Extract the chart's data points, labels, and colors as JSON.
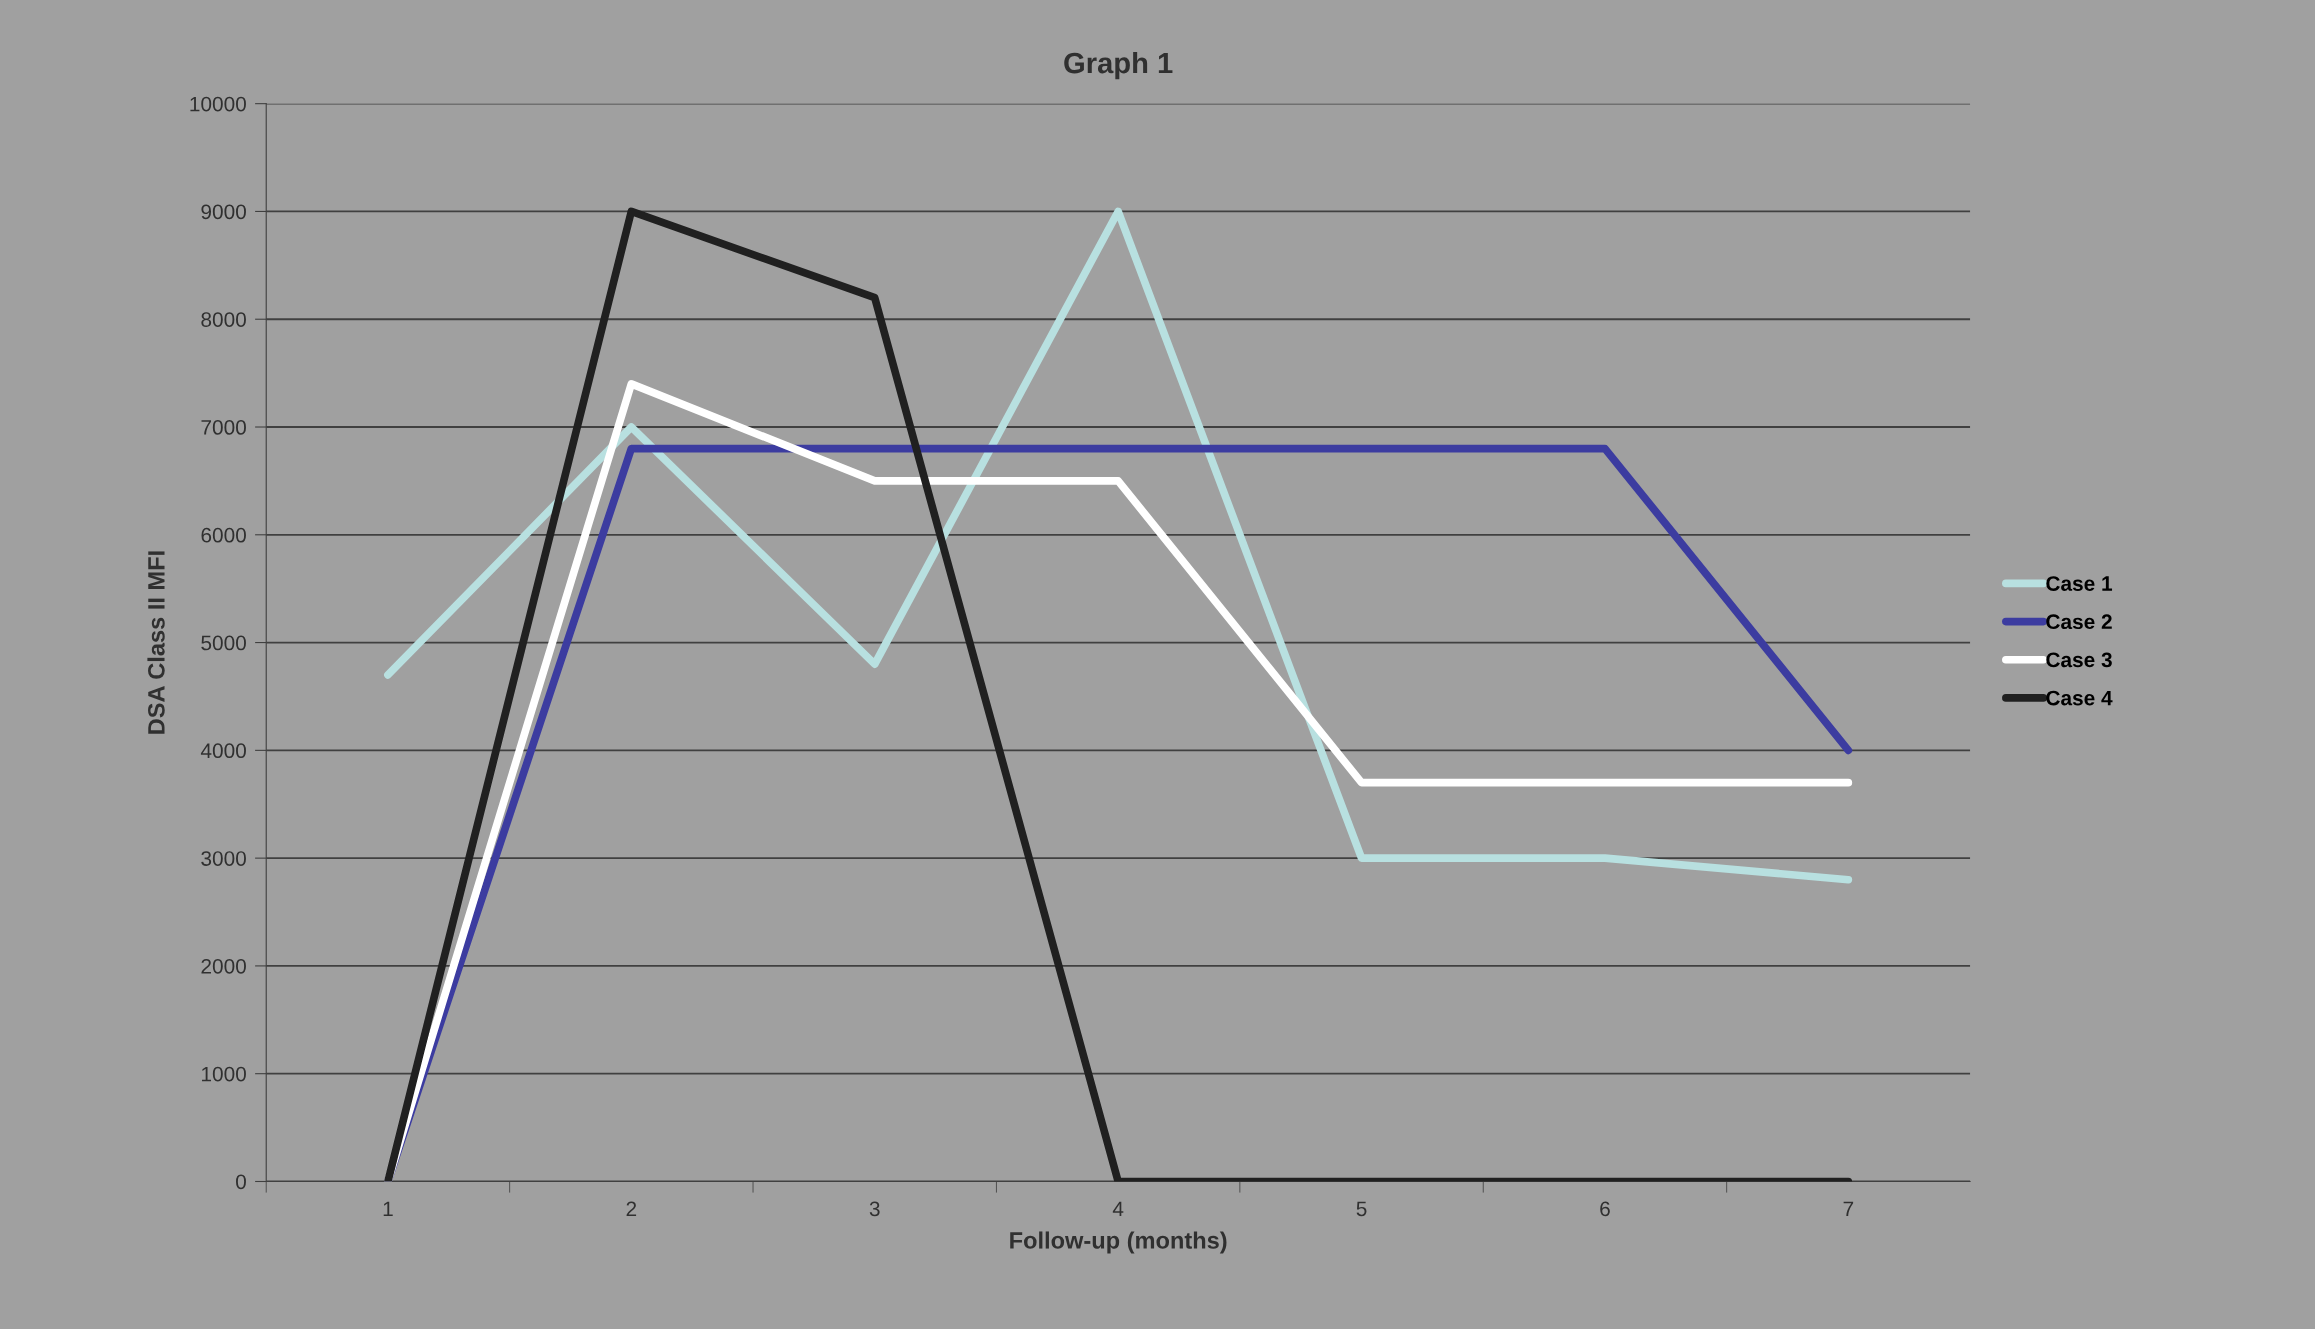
{
  "chart_data": {
    "type": "line",
    "title": "Graph 1",
    "xlabel": "Follow-up (months)",
    "ylabel": "DSA Class II MFI",
    "categories": [
      "1",
      "2",
      "3",
      "4",
      "5",
      "6",
      "7"
    ],
    "series": [
      {
        "name": "Case 1",
        "color": "#b8e0e0",
        "values": [
          4700,
          7000,
          4800,
          9000,
          3000,
          3000,
          2800
        ]
      },
      {
        "name": "Case 2",
        "color": "#3c3ca0",
        "values": [
          0,
          6800,
          6800,
          6800,
          6800,
          6800,
          4000
        ]
      },
      {
        "name": "Case 3",
        "color": "#ffffff",
        "values": [
          0,
          7400,
          6500,
          6500,
          3700,
          3700,
          3700
        ]
      },
      {
        "name": "Case 4",
        "color": "#202020",
        "values": [
          0,
          9000,
          8200,
          0,
          0,
          0,
          0
        ]
      }
    ],
    "ylim": [
      0,
      10000
    ],
    "yticks": [
      0,
      1000,
      2000,
      3000,
      4000,
      5000,
      6000,
      7000,
      8000,
      9000,
      10000
    ],
    "grid": "y",
    "legend": "right",
    "marker": "none",
    "line_style": "solid"
  }
}
